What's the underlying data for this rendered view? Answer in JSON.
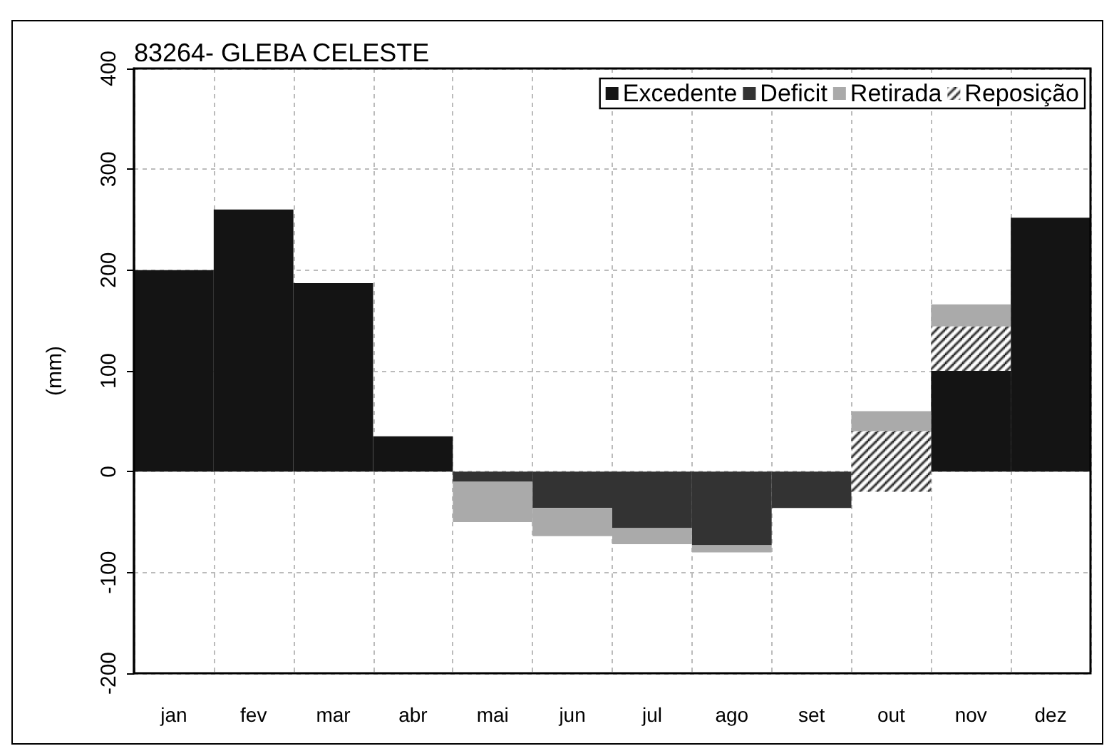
{
  "chart_data": {
    "type": "bar",
    "title": "83264- GLEBA CELESTE",
    "ylabel": "(mm)",
    "categories": [
      "jan",
      "fev",
      "mar",
      "abr",
      "mai",
      "jun",
      "jul",
      "ago",
      "set",
      "out",
      "nov",
      "dez"
    ],
    "series": [
      {
        "name": "Excedente",
        "color": "#141414",
        "values": [
          200,
          260,
          187,
          35,
          null,
          null,
          null,
          null,
          null,
          null,
          100,
          252
        ],
        "base": [
          0,
          0,
          0,
          0,
          null,
          null,
          null,
          null,
          null,
          null,
          0,
          0
        ]
      },
      {
        "name": "Deficit",
        "color": "#333333",
        "values": [
          null,
          null,
          null,
          null,
          -10,
          -36,
          -56,
          -73,
          -36,
          null,
          null,
          null
        ],
        "base": [
          null,
          null,
          null,
          null,
          0,
          0,
          0,
          0,
          0,
          null,
          null,
          null
        ]
      },
      {
        "name": "Retirada",
        "color": "#aaaaaa",
        "values": [
          null,
          null,
          null,
          null,
          -40,
          -28,
          -16,
          -7,
          null,
          20,
          22,
          null
        ],
        "base": [
          null,
          null,
          null,
          null,
          -10,
          -36,
          -56,
          -73,
          null,
          40,
          144,
          null
        ]
      },
      {
        "name": "Reposição",
        "color": "#000000",
        "values": [
          null,
          null,
          null,
          null,
          null,
          null,
          null,
          null,
          null,
          60,
          44,
          null
        ],
        "base": [
          null,
          null,
          null,
          null,
          null,
          null,
          null,
          null,
          null,
          -20,
          100,
          null
        ]
      }
    ],
    "ylim": [
      -200,
      400
    ],
    "yticks": [
      -200,
      -100,
      0,
      100,
      200,
      300,
      400
    ],
    "grid": true,
    "legend": "top right"
  }
}
